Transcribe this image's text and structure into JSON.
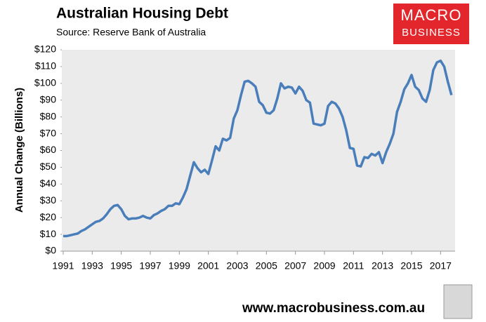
{
  "chart_data": {
    "type": "line",
    "title": "Australian Housing Debt",
    "subtitle": "Source: Reserve Bank of Australia",
    "y_label": "Annual Change (Billions)",
    "color": "#4a7ebb",
    "grid": false,
    "x": [
      1991,
      1991.25,
      1991.5,
      1991.75,
      1992,
      1992.25,
      1992.5,
      1992.75,
      1993,
      1993.25,
      1993.5,
      1993.75,
      1994,
      1994.25,
      1994.5,
      1994.75,
      1995,
      1995.25,
      1995.5,
      1995.75,
      1996,
      1996.25,
      1996.5,
      1996.75,
      1997,
      1997.25,
      1997.5,
      1997.75,
      1998,
      1998.25,
      1998.5,
      1998.75,
      1999,
      1999.25,
      1999.5,
      1999.75,
      2000,
      2000.25,
      2000.5,
      2000.75,
      2001,
      2001.25,
      2001.5,
      2001.75,
      2002,
      2002.25,
      2002.5,
      2002.75,
      2003,
      2003.25,
      2003.5,
      2003.75,
      2004,
      2004.25,
      2004.5,
      2004.75,
      2005,
      2005.25,
      2005.5,
      2005.75,
      2006,
      2006.25,
      2006.5,
      2006.75,
      2007,
      2007.25,
      2007.5,
      2007.75,
      2008,
      2008.25,
      2008.5,
      2008.75,
      2009,
      2009.25,
      2009.5,
      2009.75,
      2010,
      2010.25,
      2010.5,
      2010.75,
      2011,
      2011.25,
      2011.5,
      2011.75,
      2012,
      2012.25,
      2012.5,
      2012.75,
      2013,
      2013.25,
      2013.5,
      2013.75,
      2014,
      2014.25,
      2014.5,
      2014.75,
      2015,
      2015.25,
      2015.5,
      2015.75,
      2016,
      2016.25,
      2016.5,
      2016.75,
      2017,
      2017.25,
      2017.5,
      2017.75
    ],
    "values": [
      9,
      9,
      9.5,
      10,
      10.5,
      12,
      13,
      14.5,
      16,
      17.5,
      18,
      19.5,
      22,
      25,
      27,
      27.5,
      25,
      21,
      19,
      19.5,
      19.5,
      20,
      21,
      20,
      19.5,
      21.5,
      22.5,
      24,
      25,
      27,
      27,
      28.5,
      28,
      32,
      37,
      45,
      53,
      49.5,
      47,
      48.5,
      46,
      54,
      62.5,
      60,
      67,
      66,
      67.5,
      79,
      84,
      93,
      101,
      101.5,
      100,
      98,
      89,
      87,
      82.5,
      82,
      84,
      91,
      100,
      97,
      98,
      97.5,
      94,
      98,
      95.5,
      90,
      88.5,
      76,
      75.5,
      75,
      76,
      86.5,
      89,
      88,
      85,
      80,
      72,
      61.5,
      61,
      51,
      50.5,
      56,
      55.5,
      58,
      57,
      59,
      52.5,
      59,
      64,
      70,
      83,
      89,
      96.5,
      100,
      105,
      98,
      96,
      91,
      89,
      96,
      108,
      112.5,
      113.5,
      110,
      101,
      93
    ],
    "xlim": [
      1991,
      2018
    ],
    "xticks": [
      1991,
      1993,
      1995,
      1997,
      1999,
      2001,
      2003,
      2005,
      2007,
      2009,
      2011,
      2013,
      2015,
      2017
    ],
    "ylim": [
      0,
      120
    ],
    "yticks": [
      {
        "value": 0,
        "label": "$0"
      },
      {
        "value": 10,
        "label": "$10"
      },
      {
        "value": 20,
        "label": "$20"
      },
      {
        "value": 30,
        "label": "$30"
      },
      {
        "value": 40,
        "label": "$40"
      },
      {
        "value": 50,
        "label": "$50"
      },
      {
        "value": 60,
        "label": "$60"
      },
      {
        "value": 70,
        "label": "$70"
      },
      {
        "value": 80,
        "label": "$80"
      },
      {
        "value": 90,
        "label": "$90"
      },
      {
        "value": 100,
        "label": "$100"
      },
      {
        "value": 110,
        "label": "$110"
      },
      {
        "value": 120,
        "label": "$120"
      }
    ]
  },
  "logo": [
    "MACRO",
    "BUSINESS"
  ],
  "footer": "www.macrobusiness.com.au"
}
